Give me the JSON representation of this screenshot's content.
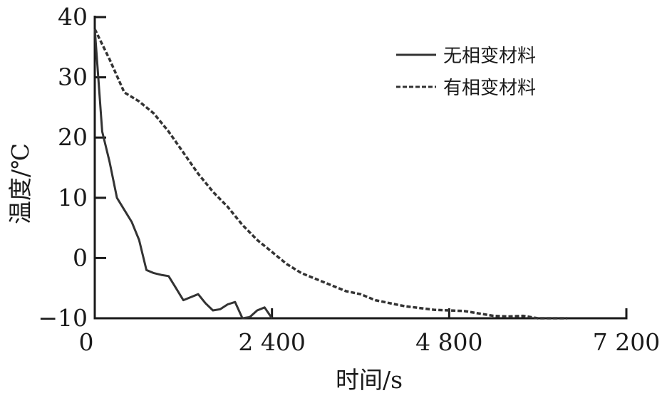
{
  "chart_data": {
    "type": "line",
    "title": "",
    "xlabel": "时间/s",
    "ylabel": "温度/℃",
    "xlim": [
      0,
      7200
    ],
    "ylim": [
      -10,
      40
    ],
    "xticks": [
      0,
      2400,
      4800,
      7200
    ],
    "xtick_labels": [
      "0",
      "2 400",
      "4 800",
      "7 200"
    ],
    "yticks": [
      -10,
      0,
      10,
      20,
      30,
      40
    ],
    "ytick_labels": [
      "−10",
      "0",
      "10",
      "20",
      "30",
      "40"
    ],
    "grid": false,
    "legend_position": "top-right",
    "series": [
      {
        "name": "无相变材料",
        "style": "solid",
        "color": "#333333",
        "x": [
          0,
          100,
          200,
          300,
          400,
          500,
          550,
          600,
          700,
          800,
          900,
          1000,
          1100,
          1200,
          1300,
          1400,
          1500,
          1600,
          1700,
          1800,
          1900,
          2000,
          2100,
          2200,
          2300,
          2400
        ],
        "y": [
          38,
          21,
          16,
          10,
          8,
          6,
          4.5,
          3,
          -2,
          -2.5,
          -2.8,
          -3,
          -5,
          -7,
          -6.5,
          -6,
          -7.5,
          -8.7,
          -8.5,
          -7.7,
          -7.3,
          -10,
          -9.8,
          -8.7,
          -8.2,
          -10
        ]
      },
      {
        "name": "有相变材料",
        "style": "dashed",
        "color": "#333333",
        "x": [
          0,
          200,
          400,
          600,
          800,
          1000,
          1200,
          1400,
          1600,
          1800,
          2000,
          2200,
          2400,
          2600,
          2800,
          3000,
          3200,
          3400,
          3600,
          3800,
          4000,
          4200,
          4400,
          4600,
          4800,
          5000,
          5200,
          5400,
          5600,
          5800,
          6000,
          6200,
          6400
        ],
        "y": [
          38,
          33,
          27.5,
          26,
          24,
          21,
          17.5,
          14,
          11,
          8.5,
          5.5,
          3,
          1,
          -1,
          -2.5,
          -3.5,
          -4.5,
          -5.5,
          -6,
          -7,
          -7.5,
          -8,
          -8.3,
          -8.6,
          -8.7,
          -8.8,
          -9.2,
          -9.6,
          -9.7,
          -9.6,
          -10,
          -10,
          -10
        ]
      }
    ]
  }
}
